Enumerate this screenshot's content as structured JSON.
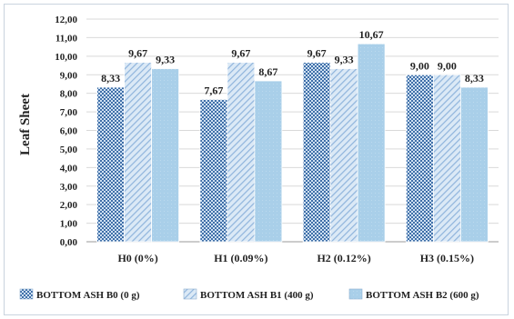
{
  "chart_data": {
    "type": "bar",
    "ylabel": "Leaf Sheet",
    "xlabel": "",
    "title": "",
    "ylim": [
      0,
      12
    ],
    "y_ticks": [
      "0,00",
      "1,00",
      "2,00",
      "3,00",
      "4,00",
      "5,00",
      "6,00",
      "7,00",
      "8,00",
      "9,00",
      "10,00",
      "11,00",
      "12,00"
    ],
    "categories": [
      "H0 (0%)",
      "H1 (0.09%)",
      "H2 (0.12%)",
      "H3 (0.15%)"
    ],
    "series": [
      {
        "name": "BOTTOM ASH B0 (0 g)",
        "values": [
          8.33,
          7.67,
          9.67,
          9.0
        ],
        "labels": [
          "8,33",
          "7,67",
          "9,67",
          "9,00"
        ],
        "color": "#4f7fb5",
        "pattern": "checker"
      },
      {
        "name": "BOTTOM ASH B1 (400 g)",
        "values": [
          9.67,
          9.67,
          9.33,
          9.0
        ],
        "labels": [
          "9,67",
          "9,67",
          "9,33",
          "9,00"
        ],
        "color": "#9fc1e3",
        "pattern": "diagonal"
      },
      {
        "name": "BOTTOM ASH B2 (600 g)",
        "values": [
          9.33,
          8.67,
          10.67,
          8.33
        ],
        "labels": [
          "9,33",
          "8,67",
          "10,67",
          "8,33"
        ],
        "color": "#a9cfe9",
        "pattern": "solid"
      }
    ],
    "grid": true,
    "legend_position": "bottom"
  }
}
